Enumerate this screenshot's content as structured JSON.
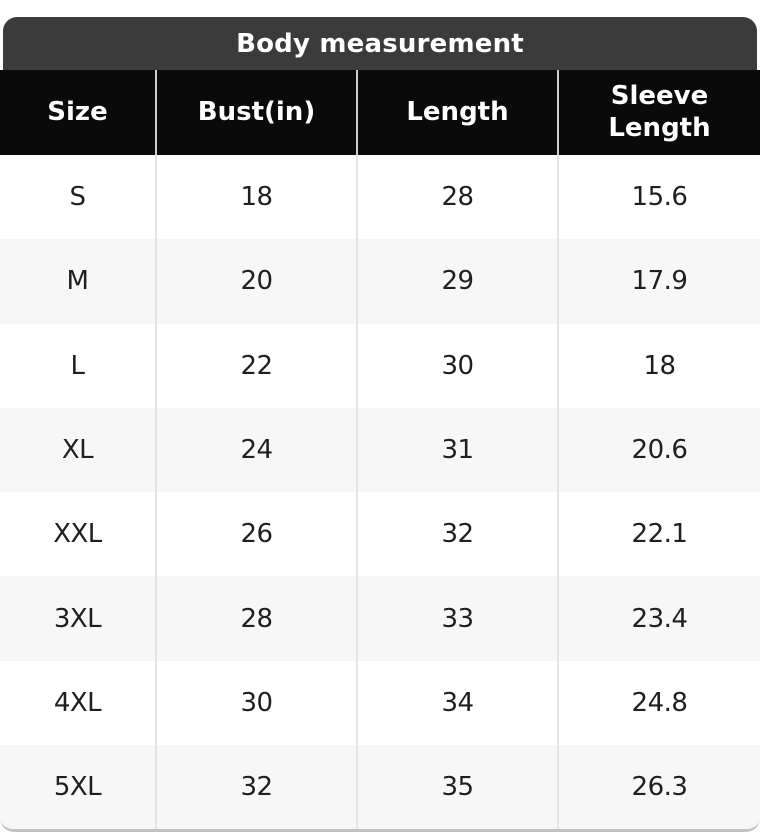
{
  "title": "Body measurement",
  "colors": {
    "title_bar": "#3b3b3b",
    "header_bg": "#0a0a0a",
    "header_text": "#ffffff",
    "row_bg": "#ffffff",
    "row_alt_bg": "#f7f7f7",
    "separator": "#e4e4e4",
    "header_separator": "#cfcfcf",
    "body_text": "#1f1f1f",
    "bottom_edge": "#c2c2c2"
  },
  "table": {
    "columns": [
      "Size",
      "Bust(in)",
      "Length",
      "Sleeve Length"
    ],
    "rows": [
      {
        "size": "S",
        "bust": "18",
        "length": "28",
        "sleeve": "15.6"
      },
      {
        "size": "M",
        "bust": "20",
        "length": "29",
        "sleeve": "17.9"
      },
      {
        "size": "L",
        "bust": "22",
        "length": "30",
        "sleeve": "18"
      },
      {
        "size": "XL",
        "bust": "24",
        "length": "31",
        "sleeve": "20.6"
      },
      {
        "size": "XXL",
        "bust": "26",
        "length": "32",
        "sleeve": "22.1"
      },
      {
        "size": "3XL",
        "bust": "28",
        "length": "33",
        "sleeve": "23.4"
      },
      {
        "size": "4XL",
        "bust": "30",
        "length": "34",
        "sleeve": "24.8"
      },
      {
        "size": "5XL",
        "bust": "32",
        "length": "35",
        "sleeve": "26.3"
      }
    ]
  },
  "chart_data": {
    "type": "table",
    "title": "Body measurement",
    "columns": [
      "Size",
      "Bust(in)",
      "Length",
      "Sleeve Length"
    ],
    "rows": [
      [
        "S",
        18,
        28,
        15.6
      ],
      [
        "M",
        20,
        29,
        17.9
      ],
      [
        "L",
        22,
        30,
        18
      ],
      [
        "XL",
        24,
        31,
        20.6
      ],
      [
        "XXL",
        26,
        32,
        22.1
      ],
      [
        "3XL",
        28,
        33,
        23.4
      ],
      [
        "4XL",
        30,
        34,
        24.8
      ],
      [
        "5XL",
        32,
        35,
        26.3
      ]
    ]
  }
}
